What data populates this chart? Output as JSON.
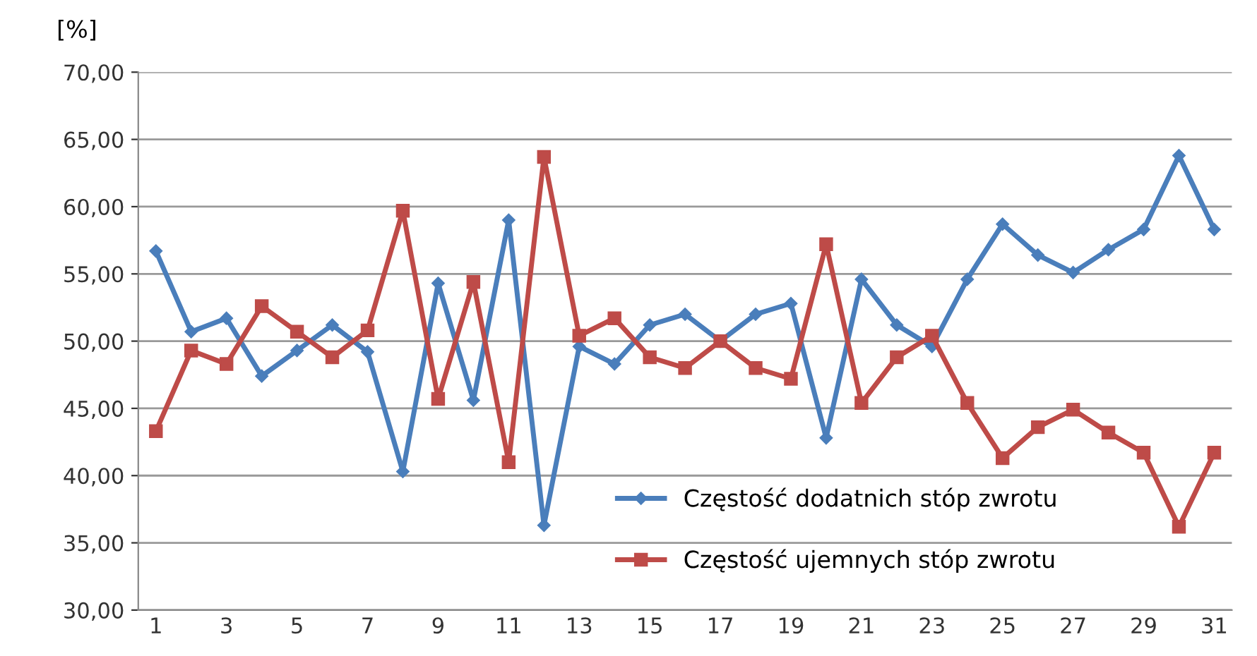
{
  "chart_data": {
    "type": "line",
    "ylabel": "[%]",
    "categories": [
      "1",
      null,
      "3",
      null,
      "5",
      null,
      "7",
      null,
      "9",
      null,
      "11",
      null,
      "13",
      null,
      "15",
      null,
      "17",
      null,
      "19",
      null,
      "21",
      null,
      "23",
      null,
      "25",
      null,
      "27",
      null,
      "29",
      null,
      "31"
    ],
    "series": [
      {
        "name": "Częstość dodatnich stóp zwrotu",
        "color": "#4a7ebb",
        "marker": "diamond",
        "values": [
          56.7,
          50.7,
          51.7,
          47.4,
          49.3,
          51.2,
          49.2,
          40.3,
          54.3,
          45.6,
          59.0,
          36.3,
          49.6,
          48.3,
          51.2,
          52.0,
          50.0,
          52.0,
          52.8,
          42.8,
          54.6,
          51.2,
          49.6,
          54.6,
          58.7,
          56.4,
          55.1,
          56.8,
          58.3,
          63.8,
          58.3
        ]
      },
      {
        "name": "Częstość ujemnych stóp zwrotu",
        "color": "#be4b48",
        "marker": "square",
        "values": [
          43.3,
          49.3,
          48.3,
          52.6,
          50.7,
          48.8,
          50.8,
          59.7,
          45.7,
          54.4,
          41.0,
          63.7,
          50.4,
          51.7,
          48.8,
          48.0,
          50.0,
          48.0,
          47.2,
          57.2,
          45.4,
          48.8,
          50.4,
          45.4,
          41.3,
          43.6,
          44.9,
          43.2,
          41.7,
          36.2,
          41.7
        ]
      }
    ],
    "ylim": [
      30,
      70
    ],
    "yticks": [
      {
        "value": 30,
        "label": "30,00"
      },
      {
        "value": 35,
        "label": "35,00"
      },
      {
        "value": 40,
        "label": "40,00"
      },
      {
        "value": 45,
        "label": "45,00"
      },
      {
        "value": 50,
        "label": "50,00"
      },
      {
        "value": 55,
        "label": "55,00"
      },
      {
        "value": 60,
        "label": "60,00"
      },
      {
        "value": 65,
        "label": "65,00"
      },
      {
        "value": 70,
        "label": "70,00"
      }
    ],
    "grid": "y",
    "legend": "bottom right"
  }
}
